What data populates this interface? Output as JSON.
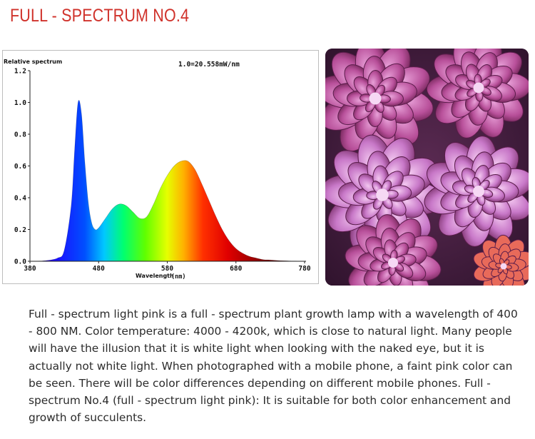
{
  "header": {
    "title": "FULL - SPECTRUM NO.4"
  },
  "chart_data": {
    "type": "line",
    "ylabel": "Relative spectrum",
    "xlabel": "Wavelength",
    "xlabel_unit": "(nm)",
    "annotation": "1.0=20.558mW/nm",
    "xlim": [
      380,
      780
    ],
    "ylim": [
      0,
      1.2
    ],
    "x_ticks": [
      "380",
      "480",
      "580",
      "680",
      "780"
    ],
    "y_ticks": [
      "0.0",
      "0.2",
      "0.4",
      "0.6",
      "0.8",
      "1.0",
      "1.2"
    ],
    "grid": false,
    "fill": "wavelength-color gradient",
    "series": [
      {
        "x": [
          380,
          400,
          420,
          430,
          440,
          445,
          450,
          455,
          460,
          465,
          470,
          475,
          480,
          490,
          500,
          510,
          520,
          530,
          540,
          550,
          560,
          570,
          580,
          590,
          600,
          610,
          620,
          630,
          640,
          650,
          660,
          670,
          680,
          690,
          700,
          710,
          720,
          730,
          740,
          750,
          760,
          770,
          780
        ],
        "values": [
          0.0,
          0.003,
          0.02,
          0.07,
          0.35,
          0.7,
          1.0,
          0.93,
          0.62,
          0.37,
          0.24,
          0.2,
          0.21,
          0.27,
          0.33,
          0.36,
          0.35,
          0.31,
          0.27,
          0.28,
          0.36,
          0.46,
          0.54,
          0.6,
          0.63,
          0.63,
          0.58,
          0.49,
          0.39,
          0.29,
          0.2,
          0.13,
          0.08,
          0.05,
          0.03,
          0.02,
          0.01,
          0.008,
          0.005,
          0.003,
          0.002,
          0.001,
          0.0
        ]
      }
    ]
  },
  "photo": {
    "icon": "succulent-photo"
  },
  "description": {
    "text": "Full - spectrum light pink is a full - spectrum plant growth lamp with a wavelength of 400 - 800 NM. Color temperature: 4000 - 4200k, which is close to natural light. Many people will have the illusion that it is white light when looking with the naked eye, but it is actually not white light. When photographed with a mobile phone, a faint pink color can be seen. There will be color differences depending on different mobile phones. Full - spectrum No.4 (full - spectrum light pink): It is suitable for both color enhancement and growth of succulents."
  }
}
